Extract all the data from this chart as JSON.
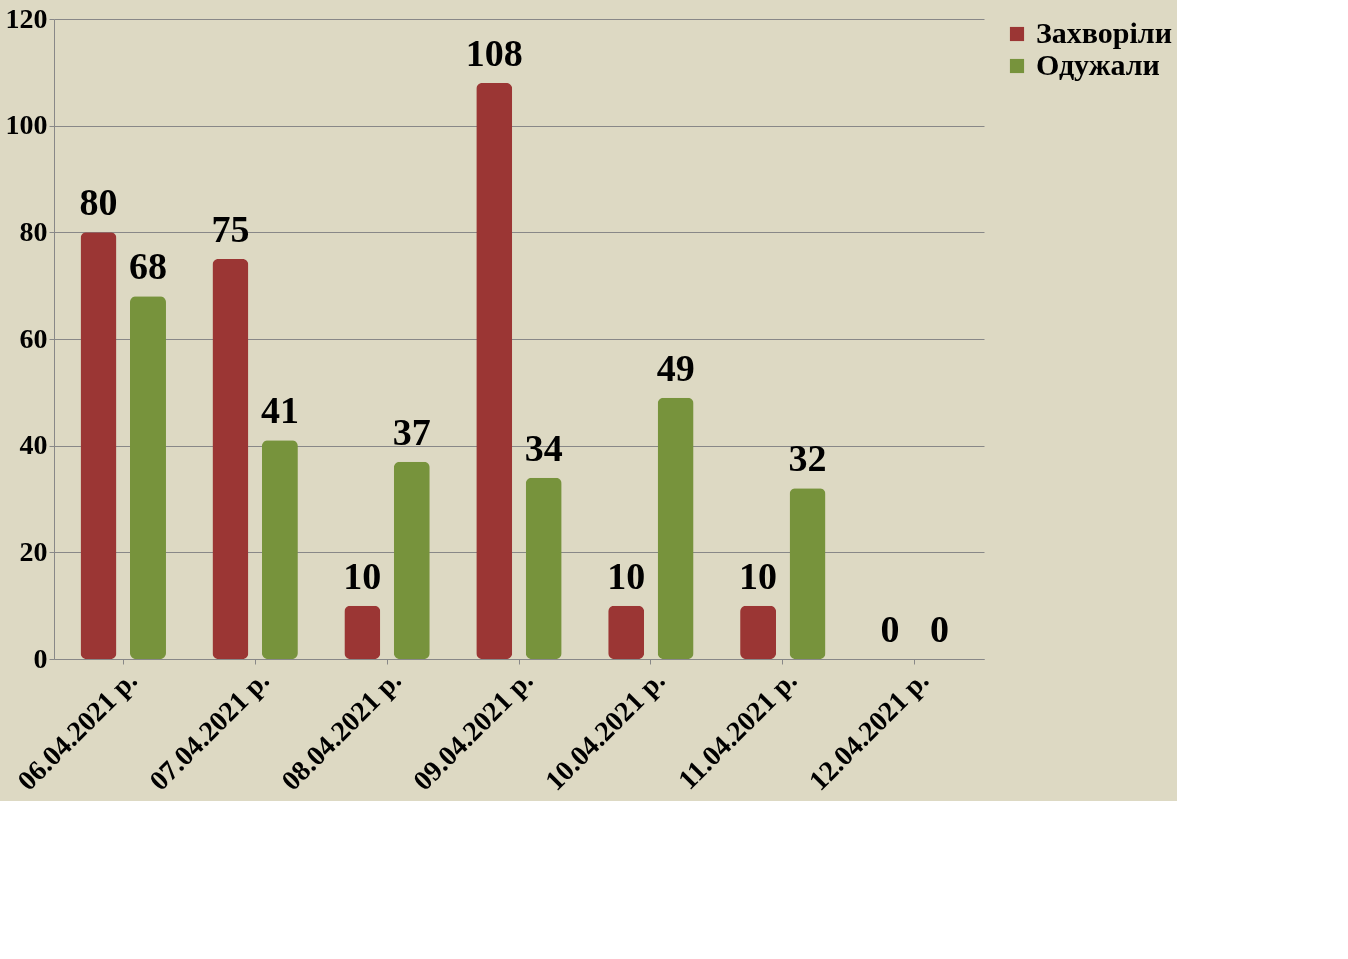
{
  "chart_data": {
    "type": "bar",
    "categories": [
      "06.04.2021 р.",
      "07.04.2021 р.",
      "08.04.2021 р.",
      "09.04.2021 р.",
      "10.04.2021 р.",
      "11.04.2021 р.",
      "12.04.2021 р."
    ],
    "series": [
      {
        "name": "Захворіли",
        "color": "#9b3634",
        "values": [
          80,
          75,
          10,
          108,
          10,
          10,
          0
        ]
      },
      {
        "name": "Одужали",
        "color": "#77933c",
        "values": [
          68,
          41,
          37,
          34,
          49,
          32,
          0
        ]
      }
    ],
    "ylim": [
      0,
      120
    ],
    "yticks": [
      0,
      20,
      40,
      60,
      80,
      100,
      120
    ],
    "grid": "y",
    "legend": "right",
    "data_labels": true
  }
}
